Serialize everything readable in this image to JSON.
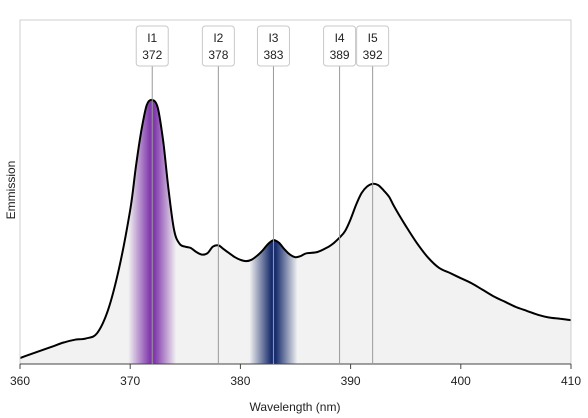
{
  "chart_data": {
    "type": "area",
    "xlabel": "Wavelength  (nm)",
    "ylabel": "Emmission",
    "xlim": [
      360,
      410
    ],
    "ylim": [
      0,
      1
    ],
    "x_ticks": [
      360,
      370,
      380,
      390,
      400,
      410
    ],
    "grid": false,
    "legend": "none",
    "colors": {
      "fill": "#f2f2f2",
      "line": "#000000",
      "band_i1": "#7b2fa8",
      "band_i3": "#1a2e6e",
      "peak_line": "#9a9a9a"
    },
    "series": [
      {
        "x": [
          360,
          361,
          362,
          363,
          364,
          365,
          366,
          367,
          368,
          369,
          370,
          370.5,
          371,
          371.5,
          372,
          372.5,
          373,
          373.5,
          374,
          374.5,
          375,
          375.5,
          376,
          376.5,
          377,
          377.5,
          378,
          378.5,
          379,
          379.5,
          380,
          380.5,
          381,
          381.5,
          382,
          382.5,
          383,
          383.5,
          384,
          384.5,
          385,
          385.5,
          386,
          387,
          388,
          388.5,
          389,
          389.5,
          390,
          390.5,
          391,
          391.5,
          392,
          392.5,
          393,
          393.5,
          394,
          395,
          396,
          397,
          398,
          399,
          400,
          401,
          402,
          403,
          404,
          405,
          406,
          407,
          408,
          409,
          410
        ],
        "y": [
          0.015,
          0.03,
          0.045,
          0.06,
          0.075,
          0.085,
          0.09,
          0.11,
          0.2,
          0.36,
          0.58,
          0.74,
          0.88,
          0.98,
          1.0,
          0.97,
          0.84,
          0.65,
          0.5,
          0.45,
          0.44,
          0.435,
          0.42,
          0.41,
          0.415,
          0.44,
          0.445,
          0.43,
          0.415,
          0.4,
          0.39,
          0.385,
          0.39,
          0.405,
          0.425,
          0.45,
          0.465,
          0.455,
          0.43,
          0.41,
          0.4,
          0.405,
          0.415,
          0.42,
          0.44,
          0.455,
          0.475,
          0.5,
          0.545,
          0.6,
          0.645,
          0.67,
          0.68,
          0.675,
          0.655,
          0.63,
          0.59,
          0.52,
          0.455,
          0.4,
          0.36,
          0.34,
          0.32,
          0.3,
          0.275,
          0.25,
          0.23,
          0.21,
          0.195,
          0.18,
          0.17,
          0.165,
          0.16
        ]
      }
    ],
    "peaks": [
      {
        "label": "I1",
        "value": "372",
        "x": 372,
        "band": true
      },
      {
        "label": "I2",
        "value": "378",
        "x": 378,
        "band": false
      },
      {
        "label": "I3",
        "value": "383",
        "x": 383,
        "band": true
      },
      {
        "label": "I4",
        "value": "389",
        "x": 389,
        "band": false
      },
      {
        "label": "I5",
        "value": "392",
        "x": 392,
        "band": false
      }
    ]
  }
}
